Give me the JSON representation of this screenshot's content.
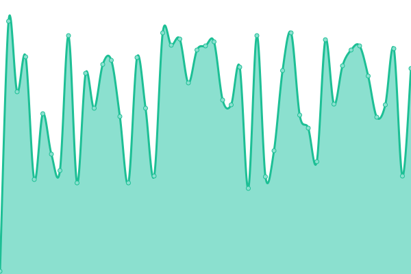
{
  "chart_data": {
    "type": "area",
    "x": [
      0,
      1,
      2,
      3,
      4,
      5,
      6,
      7,
      8,
      9,
      10,
      11,
      12,
      13,
      14,
      15,
      16,
      17,
      18,
      19,
      20,
      21,
      22,
      23,
      24,
      25,
      26,
      27,
      28,
      29,
      30,
      31,
      32,
      33,
      34,
      35,
      36,
      37,
      38,
      39,
      40,
      41,
      42,
      43,
      44,
      45,
      46,
      47,
      48
    ],
    "values": [
      4,
      369,
      266,
      317,
      138,
      234,
      175,
      151,
      348,
      133,
      293,
      242,
      306,
      312,
      230,
      133,
      316,
      242,
      143,
      352,
      334,
      343,
      279,
      327,
      333,
      339,
      254,
      247,
      302,
      125,
      348,
      142,
      180,
      297,
      352,
      232,
      213,
      164,
      342,
      248,
      304,
      327,
      333,
      289,
      229,
      247,
      329,
      143,
      300
    ],
    "ylim": [
      0,
      400
    ],
    "grid": false,
    "axes_visible": false,
    "smooth": true,
    "markers": true,
    "colors": {
      "line": "#1dbf95",
      "fill": "#8be0cf",
      "marker_fill": "#8be0cf"
    }
  }
}
